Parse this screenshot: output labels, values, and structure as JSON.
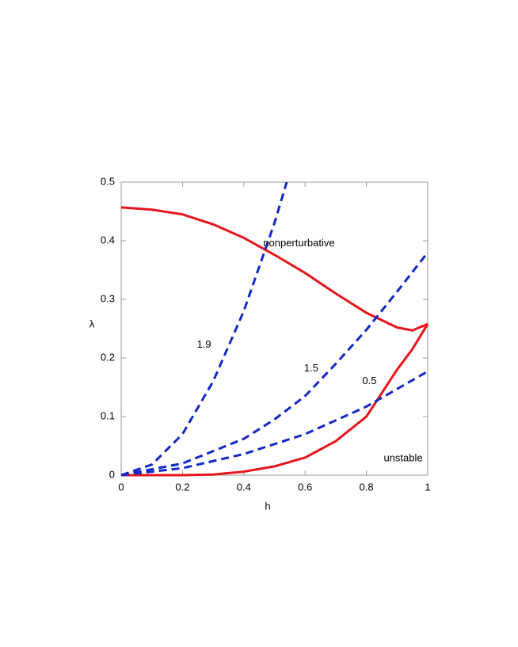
{
  "chart_data": {
    "type": "line",
    "x_label": "h",
    "y_label": "λ",
    "xlim": [
      0,
      1
    ],
    "ylim": [
      0,
      0.5
    ],
    "xticks": [
      0,
      0.2,
      0.4,
      0.6,
      0.8,
      1
    ],
    "yticks": [
      0,
      0.1,
      0.2,
      0.3,
      0.4,
      0.5
    ],
    "series": [
      {
        "color": "#e8141c",
        "style": "solid",
        "x": [
          0,
          0.1,
          0.2,
          0.3,
          0.4,
          0.5,
          0.6,
          0.7,
          0.8,
          0.9,
          0.95,
          1
        ],
        "values": [
          0.457,
          0.453,
          0.445,
          0.428,
          0.405,
          0.376,
          0.345,
          0.31,
          0.277,
          0.252,
          0.247,
          0.258
        ]
      },
      {
        "color": "#e8141c",
        "style": "solid",
        "x": [
          0,
          0.2,
          0.3,
          0.4,
          0.5,
          0.6,
          0.7,
          0.8,
          0.85,
          0.9,
          0.95,
          1
        ],
        "values": [
          0,
          0,
          0.001,
          0.006,
          0.015,
          0.03,
          0.058,
          0.1,
          0.14,
          0.18,
          0.215,
          0.258
        ]
      },
      {
        "name": "1.9",
        "color": "#1428c8",
        "style": "dashed",
        "x": [
          0,
          0.1,
          0.2,
          0.3,
          0.4,
          0.5,
          0.54
        ],
        "values": [
          0,
          0.018,
          0.07,
          0.16,
          0.28,
          0.43,
          0.5
        ]
      },
      {
        "name": "1.5",
        "color": "#1428c8",
        "style": "dashed",
        "x": [
          0,
          0.2,
          0.4,
          0.5,
          0.6,
          0.7,
          0.8,
          0.9,
          1
        ],
        "values": [
          0,
          0.02,
          0.062,
          0.095,
          0.135,
          0.19,
          0.248,
          0.313,
          0.38
        ]
      },
      {
        "name": "0.5",
        "color": "#1428c8",
        "style": "dashed",
        "x": [
          0,
          0.2,
          0.4,
          0.6,
          0.8,
          1
        ],
        "values": [
          0,
          0.012,
          0.036,
          0.07,
          0.117,
          0.177
        ]
      }
    ],
    "annotations": [
      "nonperturbative",
      "unstable"
    ]
  }
}
